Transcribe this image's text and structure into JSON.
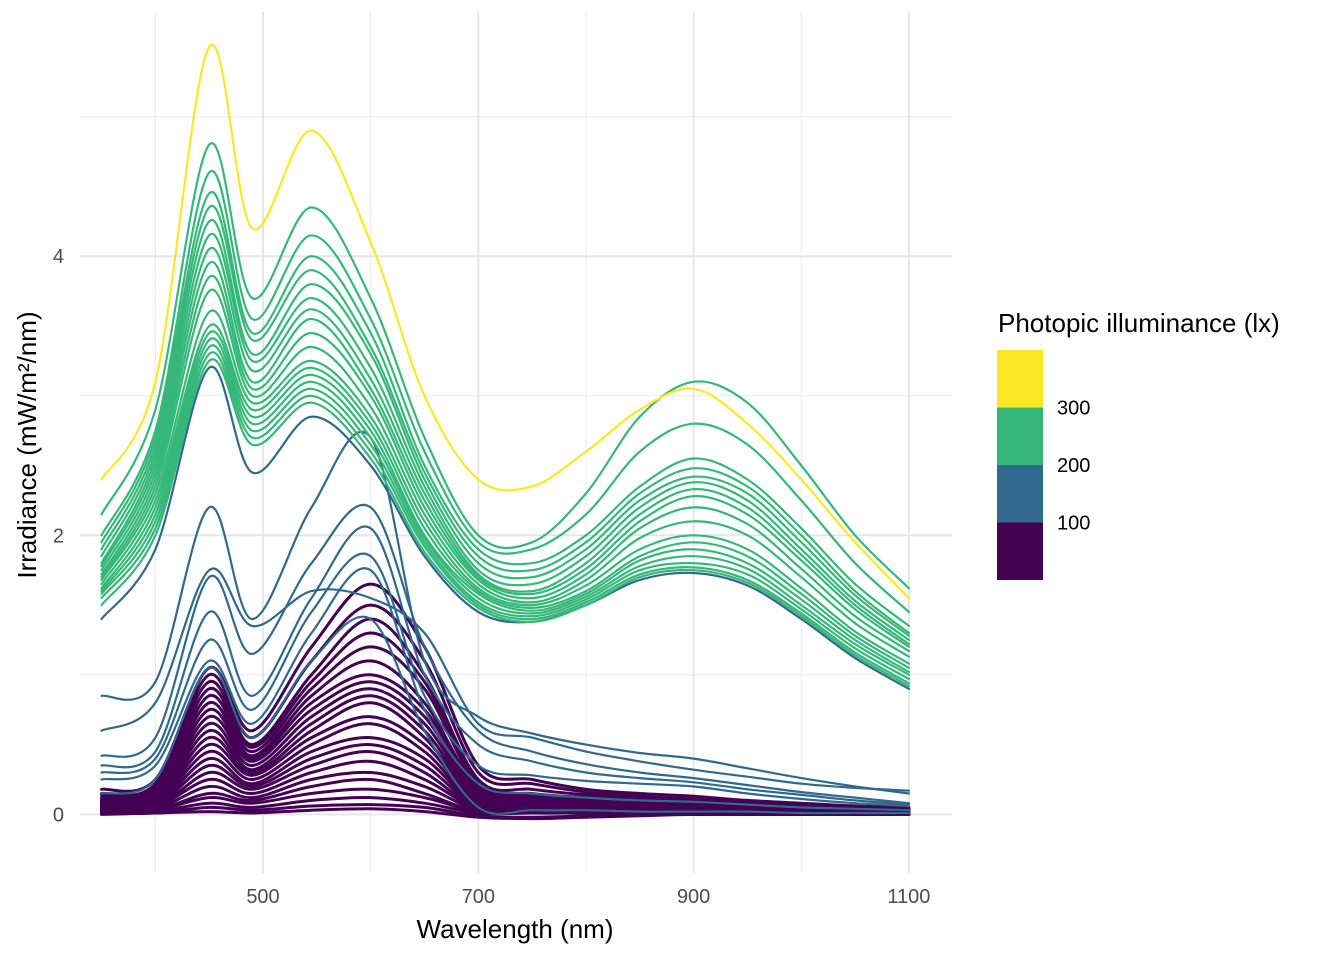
{
  "chart_data": {
    "type": "line",
    "title": "",
    "xlabel": "Wavelength (nm)",
    "ylabel": "Irradiance (mW/m²/nm)",
    "xlim": [
      330,
      1140
    ],
    "ylim": [
      -0.42,
      5.75
    ],
    "x_ticks": [
      500,
      700,
      900,
      1100
    ],
    "x_tick_labels": [
      "500",
      "700",
      "900",
      "1100"
    ],
    "y_ticks": [
      0,
      2,
      4
    ],
    "y_tick_labels": [
      "0",
      "2",
      "4"
    ],
    "grid": true,
    "legend": {
      "title": "Photopic illuminance (lx)",
      "placement": "right",
      "bins": [
        {
          "label": "",
          "color": "#440154"
        },
        {
          "label": "100",
          "color": "#31688E"
        },
        {
          "label": "200",
          "color": "#35B779"
        },
        {
          "label": "300",
          "color": "#FDE725"
        }
      ]
    },
    "x": [
      350,
      400,
      450,
      490,
      545,
      600,
      650,
      700,
      750,
      800,
      850,
      900,
      950,
      1000,
      1050,
      1100
    ],
    "series": [
      {
        "color": "#FDE725",
        "values": [
          2.4,
          3.1,
          5.5,
          4.2,
          4.9,
          4.1,
          3.0,
          2.4,
          2.35,
          2.6,
          2.9,
          3.05,
          2.8,
          2.4,
          1.95,
          1.55
        ]
      },
      {
        "color": "#35B779",
        "values": [
          2.15,
          2.9,
          4.8,
          3.7,
          4.35,
          3.7,
          2.7,
          2.0,
          1.95,
          2.3,
          2.85,
          3.1,
          2.95,
          2.5,
          2.0,
          1.62
        ]
      },
      {
        "color": "#35B779",
        "values": [
          2.0,
          2.75,
          4.6,
          3.55,
          4.15,
          3.55,
          2.6,
          1.95,
          1.9,
          2.15,
          2.6,
          2.8,
          2.65,
          2.25,
          1.8,
          1.45
        ]
      },
      {
        "color": "#35B779",
        "values": [
          1.95,
          2.7,
          4.45,
          3.45,
          4.0,
          3.45,
          2.5,
          1.9,
          1.8,
          2.0,
          2.35,
          2.55,
          2.4,
          2.05,
          1.65,
          1.35
        ]
      },
      {
        "color": "#35B779",
        "values": [
          1.9,
          2.65,
          4.35,
          3.4,
          3.9,
          3.35,
          2.45,
          1.85,
          1.75,
          1.95,
          2.3,
          2.48,
          2.35,
          2.0,
          1.6,
          1.3
        ]
      },
      {
        "color": "#35B779",
        "values": [
          1.85,
          2.6,
          4.25,
          3.3,
          3.8,
          3.3,
          2.4,
          1.8,
          1.7,
          1.9,
          2.25,
          2.42,
          2.3,
          1.95,
          1.57,
          1.28
        ]
      },
      {
        "color": "#35B779",
        "values": [
          1.8,
          2.55,
          4.15,
          3.25,
          3.7,
          3.2,
          2.35,
          1.75,
          1.65,
          1.85,
          2.2,
          2.38,
          2.25,
          1.9,
          1.53,
          1.25
        ]
      },
      {
        "color": "#35B779",
        "values": [
          1.78,
          2.5,
          4.05,
          3.18,
          3.62,
          3.12,
          2.3,
          1.72,
          1.6,
          1.8,
          2.15,
          2.33,
          2.2,
          1.86,
          1.5,
          1.22
        ]
      },
      {
        "color": "#35B779",
        "values": [
          1.75,
          2.45,
          3.95,
          3.1,
          3.55,
          3.05,
          2.25,
          1.7,
          1.58,
          1.76,
          2.1,
          2.28,
          2.15,
          1.82,
          1.47,
          1.2
        ]
      },
      {
        "color": "#35B779",
        "values": [
          1.72,
          2.4,
          3.85,
          3.05,
          3.45,
          3.0,
          2.2,
          1.68,
          1.55,
          1.72,
          2.05,
          2.2,
          2.08,
          1.76,
          1.42,
          1.17
        ]
      },
      {
        "color": "#35B779",
        "values": [
          1.7,
          2.35,
          3.75,
          3.0,
          3.35,
          2.92,
          2.15,
          1.65,
          1.52,
          1.68,
          1.98,
          2.1,
          2.0,
          1.7,
          1.37,
          1.13
        ]
      },
      {
        "color": "#35B779",
        "values": [
          1.68,
          2.3,
          3.6,
          2.95,
          3.25,
          2.85,
          2.1,
          1.62,
          1.5,
          1.64,
          1.9,
          2.0,
          1.9,
          1.62,
          1.31,
          1.08
        ]
      },
      {
        "color": "#35B779",
        "values": [
          1.65,
          2.25,
          3.5,
          2.9,
          3.2,
          2.8,
          2.05,
          1.6,
          1.48,
          1.6,
          1.85,
          1.95,
          1.85,
          1.58,
          1.28,
          1.05
        ]
      },
      {
        "color": "#35B779",
        "values": [
          1.62,
          2.2,
          3.45,
          2.85,
          3.15,
          2.75,
          2.0,
          1.58,
          1.46,
          1.58,
          1.82,
          1.9,
          1.8,
          1.54,
          1.25,
          1.02
        ]
      },
      {
        "color": "#35B779",
        "values": [
          1.6,
          2.15,
          3.4,
          2.8,
          3.1,
          2.7,
          1.98,
          1.55,
          1.44,
          1.56,
          1.78,
          1.85,
          1.76,
          1.5,
          1.22,
          1.0
        ]
      },
      {
        "color": "#35B779",
        "values": [
          1.58,
          2.1,
          3.35,
          2.75,
          3.05,
          2.65,
          1.95,
          1.52,
          1.42,
          1.54,
          1.75,
          1.8,
          1.72,
          1.47,
          1.19,
          0.97
        ]
      },
      {
        "color": "#35B779",
        "values": [
          1.55,
          2.05,
          3.3,
          2.7,
          3.0,
          2.6,
          1.92,
          1.5,
          1.4,
          1.52,
          1.72,
          1.77,
          1.68,
          1.44,
          1.16,
          0.94
        ]
      },
      {
        "color": "#35B779",
        "values": [
          1.5,
          2.0,
          3.25,
          2.65,
          2.95,
          2.55,
          1.88,
          1.48,
          1.38,
          1.5,
          1.7,
          1.75,
          1.66,
          1.42,
          1.14,
          0.92
        ]
      },
      {
        "color": "#31688E",
        "values": [
          1.4,
          1.9,
          3.2,
          2.45,
          2.85,
          2.5,
          1.85,
          1.45,
          1.38,
          1.5,
          1.68,
          1.73,
          1.64,
          1.4,
          1.12,
          0.9
        ]
      },
      {
        "color": "#31688E",
        "values": [
          0.85,
          0.95,
          2.2,
          1.4,
          2.2,
          2.7,
          1.1,
          0.7,
          0.58,
          0.5,
          0.44,
          0.4,
          0.33,
          0.26,
          0.2,
          0.15
        ]
      },
      {
        "color": "#31688E",
        "values": [
          0.6,
          0.8,
          1.75,
          1.35,
          1.6,
          1.55,
          1.3,
          0.65,
          0.55,
          0.45,
          0.38,
          0.32,
          0.27,
          0.22,
          0.19,
          0.17
        ]
      },
      {
        "color": "#31688E",
        "values": [
          0.42,
          0.55,
          1.7,
          1.15,
          1.8,
          2.2,
          1.2,
          0.6,
          0.45,
          0.36,
          0.3,
          0.26,
          0.21,
          0.16,
          0.12,
          0.08
        ]
      },
      {
        "color": "#31688E",
        "values": [
          0.35,
          0.45,
          1.45,
          0.85,
          1.55,
          2.05,
          1.0,
          0.5,
          0.38,
          0.3,
          0.26,
          0.23,
          0.18,
          0.14,
          0.1,
          0.07
        ]
      },
      {
        "color": "#31688E",
        "values": [
          0.3,
          0.4,
          1.25,
          0.75,
          1.45,
          1.85,
          0.85,
          0.35,
          0.28,
          0.24,
          0.22,
          0.2,
          0.15,
          0.11,
          0.08,
          0.06
        ]
      },
      {
        "color": "#31688E",
        "values": [
          0.25,
          0.35,
          1.1,
          0.65,
          1.3,
          1.75,
          0.75,
          0.22,
          0.15,
          0.12,
          0.1,
          0.09,
          0.07,
          0.05,
          0.04,
          0.03
        ]
      },
      {
        "color": "#31688E",
        "values": [
          0.15,
          0.25,
          1.05,
          0.55,
          1.1,
          1.4,
          0.6,
          0.05,
          0.03,
          0.03,
          0.02,
          0.02,
          0.02,
          0.01,
          0.01,
          0.01
        ]
      },
      {
        "color": "#440154",
        "values": [
          0.18,
          0.25,
          1.05,
          0.6,
          1.2,
          1.65,
          1.2,
          0.35,
          0.25,
          0.18,
          0.15,
          0.13,
          0.1,
          0.08,
          0.06,
          0.05
        ]
      },
      {
        "color": "#440154",
        "values": [
          0.15,
          0.22,
          1.0,
          0.55,
          1.1,
          1.5,
          1.1,
          0.3,
          0.22,
          0.16,
          0.13,
          0.11,
          0.09,
          0.07,
          0.05,
          0.04
        ]
      },
      {
        "color": "#440154",
        "values": [
          0.14,
          0.2,
          0.95,
          0.5,
          1.0,
          1.4,
          1.0,
          0.25,
          0.18,
          0.14,
          0.11,
          0.1,
          0.08,
          0.06,
          0.05,
          0.04
        ]
      },
      {
        "color": "#440154",
        "values": [
          0.12,
          0.18,
          0.9,
          0.48,
          0.95,
          1.3,
          0.95,
          0.22,
          0.15,
          0.12,
          0.1,
          0.09,
          0.07,
          0.05,
          0.04,
          0.03
        ]
      },
      {
        "color": "#440154",
        "values": [
          0.11,
          0.16,
          0.85,
          0.45,
          0.9,
          1.2,
          0.9,
          0.2,
          0.13,
          0.11,
          0.09,
          0.08,
          0.06,
          0.05,
          0.04,
          0.03
        ]
      },
      {
        "color": "#440154",
        "values": [
          0.1,
          0.15,
          0.8,
          0.42,
          0.85,
          1.1,
          0.8,
          0.18,
          0.12,
          0.1,
          0.08,
          0.07,
          0.06,
          0.04,
          0.03,
          0.03
        ]
      },
      {
        "color": "#440154",
        "values": [
          0.09,
          0.14,
          0.75,
          0.4,
          0.8,
          1.0,
          0.75,
          0.16,
          0.11,
          0.09,
          0.07,
          0.06,
          0.05,
          0.04,
          0.03,
          0.02
        ]
      },
      {
        "color": "#440154",
        "values": [
          0.08,
          0.13,
          0.7,
          0.38,
          0.75,
          0.95,
          0.7,
          0.14,
          0.1,
          0.08,
          0.07,
          0.06,
          0.05,
          0.04,
          0.03,
          0.02
        ]
      },
      {
        "color": "#440154",
        "values": [
          0.08,
          0.12,
          0.65,
          0.35,
          0.7,
          0.9,
          0.65,
          0.12,
          0.09,
          0.07,
          0.06,
          0.05,
          0.04,
          0.03,
          0.03,
          0.02
        ]
      },
      {
        "color": "#440154",
        "values": [
          0.07,
          0.11,
          0.6,
          0.32,
          0.65,
          0.85,
          0.6,
          0.1,
          0.08,
          0.06,
          0.05,
          0.05,
          0.04,
          0.03,
          0.02,
          0.02
        ]
      },
      {
        "color": "#440154",
        "values": [
          0.06,
          0.1,
          0.55,
          0.3,
          0.6,
          0.8,
          0.55,
          0.09,
          0.07,
          0.06,
          0.05,
          0.04,
          0.03,
          0.03,
          0.02,
          0.02
        ]
      },
      {
        "color": "#440154",
        "values": [
          0.06,
          0.09,
          0.5,
          0.28,
          0.55,
          0.7,
          0.5,
          0.08,
          0.06,
          0.05,
          0.04,
          0.04,
          0.03,
          0.02,
          0.02,
          0.01
        ]
      },
      {
        "color": "#440154",
        "values": [
          0.05,
          0.08,
          0.45,
          0.25,
          0.5,
          0.65,
          0.45,
          0.07,
          0.05,
          0.04,
          0.04,
          0.03,
          0.03,
          0.02,
          0.02,
          0.01
        ]
      },
      {
        "color": "#440154",
        "values": [
          0.05,
          0.07,
          0.4,
          0.22,
          0.45,
          0.55,
          0.4,
          0.06,
          0.05,
          0.04,
          0.03,
          0.03,
          0.02,
          0.02,
          0.01,
          0.01
        ]
      },
      {
        "color": "#440154",
        "values": [
          0.04,
          0.06,
          0.35,
          0.2,
          0.4,
          0.5,
          0.35,
          0.05,
          0.04,
          0.03,
          0.03,
          0.02,
          0.02,
          0.02,
          0.01,
          0.01
        ]
      },
      {
        "color": "#440154",
        "values": [
          0.04,
          0.05,
          0.3,
          0.18,
          0.35,
          0.45,
          0.3,
          0.04,
          0.03,
          0.03,
          0.02,
          0.02,
          0.02,
          0.01,
          0.01,
          0.01
        ]
      },
      {
        "color": "#440154",
        "values": [
          0.03,
          0.05,
          0.25,
          0.15,
          0.3,
          0.38,
          0.25,
          0.04,
          0.03,
          0.02,
          0.02,
          0.02,
          0.01,
          0.01,
          0.01,
          0.01
        ]
      },
      {
        "color": "#440154",
        "values": [
          0.03,
          0.04,
          0.2,
          0.12,
          0.25,
          0.3,
          0.2,
          0.03,
          0.02,
          0.02,
          0.02,
          0.01,
          0.01,
          0.01,
          0.01,
          0.01
        ]
      },
      {
        "color": "#440154",
        "values": [
          0.02,
          0.03,
          0.15,
          0.1,
          0.2,
          0.25,
          0.15,
          0.02,
          0.02,
          0.02,
          0.01,
          0.01,
          0.01,
          0.01,
          0.01,
          0.0
        ]
      },
      {
        "color": "#440154",
        "values": [
          0.02,
          0.03,
          0.12,
          0.08,
          0.15,
          0.18,
          0.12,
          0.02,
          0.01,
          0.01,
          0.01,
          0.01,
          0.01,
          0.0,
          0.0,
          0.0
        ]
      },
      {
        "color": "#440154",
        "values": [
          0.01,
          0.02,
          0.08,
          0.05,
          0.1,
          0.12,
          0.08,
          0.01,
          0.01,
          0.01,
          0.01,
          0.0,
          0.0,
          0.0,
          0.0,
          0.0
        ]
      },
      {
        "color": "#440154",
        "values": [
          0.01,
          0.01,
          0.05,
          0.03,
          0.06,
          0.07,
          0.05,
          -0.01,
          -0.02,
          -0.01,
          0.0,
          0.0,
          0.0,
          0.0,
          0.0,
          0.0
        ]
      },
      {
        "color": "#440154",
        "values": [
          0.0,
          0.01,
          0.02,
          0.01,
          0.03,
          0.04,
          0.02,
          -0.02,
          -0.03,
          -0.02,
          -0.01,
          0.0,
          0.0,
          0.0,
          0.0,
          0.0
        ]
      }
    ]
  }
}
